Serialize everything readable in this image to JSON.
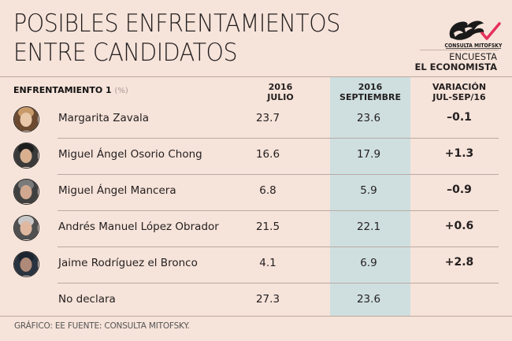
{
  "header": {
    "title_line1": "POSIBLES ENFRENTAMIENTOS",
    "title_line2": "ENTRE CANDIDATOS",
    "logo_text": "CONSULTA MITOFSKY",
    "survey_label": "ENCUESTA",
    "survey_source": "EL ECONOMISTA"
  },
  "table": {
    "section_label": "ENFRENTAMIENTO 1",
    "unit": "(%)",
    "columns": [
      {
        "line1": "2016",
        "line2": "JULIO"
      },
      {
        "line1": "2016",
        "line2": "SEPTIEMBRE"
      },
      {
        "line1": "VARIACIÓN",
        "line2": "JUL-SEP/16"
      }
    ],
    "highlight_color": "#cfdfe0",
    "rows": [
      {
        "name": "Margarita Zavala",
        "avatar": "portrait-margarita-zavala",
        "julio": "23.7",
        "septiembre": "23.6",
        "variacion": "-0.1"
      },
      {
        "name": "Miguel Ángel Osorio Chong",
        "avatar": "portrait-osorio-chong",
        "julio": "16.6",
        "septiembre": "17.9",
        "variacion": "+1.3"
      },
      {
        "name": "Miguel Ángel Mancera",
        "avatar": "portrait-mancera",
        "julio": "6.8",
        "septiembre": "5.9",
        "variacion": "-0.9"
      },
      {
        "name": "Andrés Manuel López Obrador",
        "avatar": "portrait-lopez-obrador",
        "julio": "21.5",
        "septiembre": "22.1",
        "variacion": "+0.6"
      },
      {
        "name": "Jaime Rodríguez el Bronco",
        "avatar": "portrait-el-bronco",
        "julio": "4.1",
        "septiembre": "6.9",
        "variacion": "+2.8"
      },
      {
        "name": "No declara",
        "avatar": null,
        "julio": "27.3",
        "septiembre": "23.6",
        "variacion": ""
      }
    ]
  },
  "footer": {
    "credits": "GRÁFICO: EE  FUENTE: CONSULTA MITOFSKY."
  },
  "chart_data": {
    "type": "table",
    "title": "POSIBLES ENFRENTAMIENTOS ENTRE CANDIDATOS",
    "subtitle": "ENFRENTAMIENTO 1 (%)",
    "columns": [
      "2016 JULIO",
      "2016 SEPTIEMBRE",
      "VARIACIÓN JUL-SEP/16"
    ],
    "categories": [
      "Margarita Zavala",
      "Miguel Ángel Osorio Chong",
      "Miguel Ángel Mancera",
      "Andrés Manuel López Obrador",
      "Jaime Rodríguez el Bronco",
      "No declara"
    ],
    "series": [
      {
        "name": "2016 Julio",
        "values": [
          23.7,
          16.6,
          6.8,
          21.5,
          4.1,
          27.3
        ]
      },
      {
        "name": "2016 Septiembre",
        "values": [
          23.6,
          17.9,
          5.9,
          22.1,
          6.9,
          23.6
        ]
      },
      {
        "name": "Variación Jul-Sep/16",
        "values": [
          -0.1,
          1.3,
          -0.9,
          0.6,
          2.8,
          null
        ]
      }
    ],
    "source": "Consulta Mitofsky",
    "publisher": "El Economista"
  }
}
